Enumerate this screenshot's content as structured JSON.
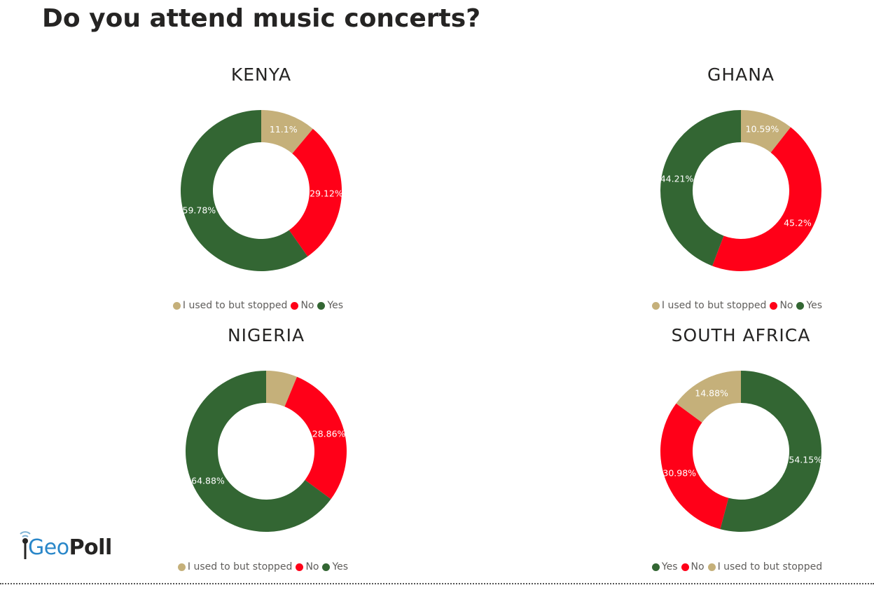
{
  "title": "Do you attend music concerts?",
  "logo": {
    "geo": "Geo",
    "poll": "Poll"
  },
  "colors": {
    "yes": "#336633",
    "no": "#ff0018",
    "stopped": "#c5b07a"
  },
  "chart_data": [
    {
      "type": "pie",
      "title": "KENYA",
      "start_angle_deg": 0,
      "slices": [
        {
          "name": "I used to but stopped",
          "value": 11.1,
          "label": "11.1%",
          "color": "#c5b07a"
        },
        {
          "name": "No",
          "value": 29.12,
          "label": "29.12%",
          "color": "#ff0018"
        },
        {
          "name": "Yes",
          "value": 59.78,
          "label": "59.78%",
          "color": "#336633"
        }
      ],
      "legend": [
        {
          "name": "I used to but stopped",
          "color": "#c5b07a"
        },
        {
          "name": "No",
          "color": "#ff0018"
        },
        {
          "name": "Yes",
          "color": "#336633"
        }
      ]
    },
    {
      "type": "pie",
      "title": "GHANA",
      "start_angle_deg": 0,
      "slices": [
        {
          "name": "I used to but stopped",
          "value": 10.59,
          "label": "10.59%",
          "color": "#c5b07a"
        },
        {
          "name": "No",
          "value": 45.2,
          "label": "45.2%",
          "color": "#ff0018"
        },
        {
          "name": "Yes",
          "value": 44.21,
          "label": "44.21%",
          "color": "#336633"
        }
      ],
      "legend": [
        {
          "name": "I used to but stopped",
          "color": "#c5b07a"
        },
        {
          "name": "No",
          "color": "#ff0018"
        },
        {
          "name": "Yes",
          "color": "#336633"
        }
      ]
    },
    {
      "type": "pie",
      "title": "NIGERIA",
      "start_angle_deg": 0,
      "slices": [
        {
          "name": "I used to but stopped",
          "value": 6.26,
          "label": "",
          "color": "#c5b07a"
        },
        {
          "name": "No",
          "value": 28.86,
          "label": "28.86%",
          "color": "#ff0018"
        },
        {
          "name": "Yes",
          "value": 64.88,
          "label": "64.88%",
          "color": "#336633"
        }
      ],
      "legend": [
        {
          "name": "I used to but stopped",
          "color": "#c5b07a"
        },
        {
          "name": "No",
          "color": "#ff0018"
        },
        {
          "name": "Yes",
          "color": "#336633"
        }
      ]
    },
    {
      "type": "pie",
      "title": "SOUTH AFRICA",
      "start_angle_deg": 0,
      "slices": [
        {
          "name": "Yes",
          "value": 54.15,
          "label": "54.15%",
          "color": "#336633"
        },
        {
          "name": "No",
          "value": 30.98,
          "label": "30.98%",
          "color": "#ff0018"
        },
        {
          "name": "I used to but stopped",
          "value": 14.88,
          "label": "14.88%",
          "color": "#c5b07a"
        }
      ],
      "legend": [
        {
          "name": "Yes",
          "color": "#336633"
        },
        {
          "name": "No",
          "color": "#ff0018"
        },
        {
          "name": "I used to but stopped",
          "color": "#c5b07a"
        }
      ]
    }
  ]
}
